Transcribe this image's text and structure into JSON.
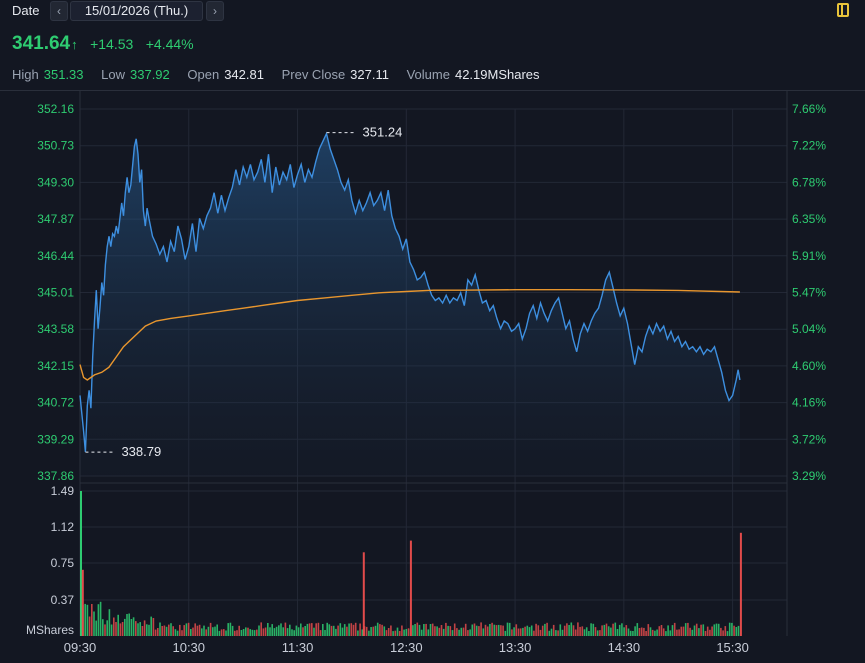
{
  "header": {
    "date_label": "Date",
    "prev_icon": "‹",
    "next_icon": "›",
    "date_value": "15/01/2026 (Thu.)"
  },
  "quote": {
    "last": "341.64",
    "arrow": "↑",
    "change": "+14.53",
    "change_pct": "+4.44%",
    "up_color": "#2ecc71"
  },
  "stats": [
    {
      "label": "High",
      "value": "351.33",
      "tone": "g"
    },
    {
      "label": "Low",
      "value": "337.92",
      "tone": "g"
    },
    {
      "label": "Open",
      "value": "342.81",
      "tone": "w"
    },
    {
      "label": "Prev Close",
      "value": "327.11",
      "tone": "w"
    },
    {
      "label": "Volume",
      "value": "42.19MShares",
      "tone": "w"
    }
  ],
  "chart_data": {
    "type": "line",
    "price_axis": {
      "ticks": [
        "352.16",
        "350.73",
        "349.30",
        "347.87",
        "346.44",
        "345.01",
        "343.58",
        "342.15",
        "340.72",
        "339.29",
        "337.86"
      ],
      "ylim": [
        337.86,
        352.16
      ]
    },
    "pct_axis": {
      "ticks": [
        "7.66%",
        "7.22%",
        "6.78%",
        "6.35%",
        "5.91%",
        "5.47%",
        "5.04%",
        "4.60%",
        "4.16%",
        "3.72%",
        "3.29%"
      ]
    },
    "time_ticks": [
      "09:30",
      "10:30",
      "11:30",
      "12:30",
      "13:30",
      "14:30",
      "15:30"
    ],
    "x_range": [
      "09:30",
      "16:00"
    ],
    "price_series": {
      "color": "#3d8fe0",
      "points": [
        [
          "09:30",
          341.0
        ],
        [
          "09:32",
          339.6
        ],
        [
          "09:33",
          338.8
        ],
        [
          "09:34",
          340.6
        ],
        [
          "09:35",
          341.2
        ],
        [
          "09:36",
          340.5
        ],
        [
          "09:37",
          342.5
        ],
        [
          "09:38",
          343.9
        ],
        [
          "09:39",
          345.1
        ],
        [
          "09:40",
          343.6
        ],
        [
          "09:41",
          344.4
        ],
        [
          "09:42",
          345.4
        ],
        [
          "09:43",
          344.9
        ],
        [
          "09:44",
          346.1
        ],
        [
          "09:45",
          346.8
        ],
        [
          "09:46",
          347.2
        ],
        [
          "09:47",
          346.8
        ],
        [
          "09:48",
          347.3
        ],
        [
          "09:49",
          347.2
        ],
        [
          "09:50",
          347.6
        ],
        [
          "09:51",
          347.3
        ],
        [
          "09:52",
          347.9
        ],
        [
          "09:53",
          348.5
        ],
        [
          "09:54",
          348.0
        ],
        [
          "09:55",
          348.9
        ],
        [
          "09:56",
          349.5
        ],
        [
          "09:57",
          348.9
        ],
        [
          "09:58",
          349.2
        ],
        [
          "10:00",
          350.7
        ],
        [
          "10:01",
          351.0
        ],
        [
          "10:02",
          350.4
        ],
        [
          "10:03",
          349.3
        ],
        [
          "10:04",
          349.8
        ],
        [
          "10:05",
          348.2
        ],
        [
          "10:06",
          347.6
        ],
        [
          "10:07",
          348.3
        ],
        [
          "10:08",
          347.9
        ],
        [
          "10:10",
          347.2
        ],
        [
          "10:12",
          346.9
        ],
        [
          "10:14",
          346.5
        ],
        [
          "10:16",
          346.8
        ],
        [
          "10:18",
          346.2
        ],
        [
          "10:20",
          347.0
        ],
        [
          "10:22",
          346.6
        ],
        [
          "10:24",
          347.6
        ],
        [
          "10:26",
          347.1
        ],
        [
          "10:28",
          346.3
        ],
        [
          "10:30",
          346.8
        ],
        [
          "10:32",
          347.7
        ],
        [
          "10:34",
          346.6
        ],
        [
          "10:36",
          347.9
        ],
        [
          "10:38",
          347.5
        ],
        [
          "10:40",
          348.0
        ],
        [
          "10:42",
          348.3
        ],
        [
          "10:44",
          348.9
        ],
        [
          "10:46",
          348.1
        ],
        [
          "10:48",
          348.8
        ],
        [
          "10:50",
          348.2
        ],
        [
          "10:52",
          348.7
        ],
        [
          "10:54",
          349.1
        ],
        [
          "10:56",
          349.8
        ],
        [
          "10:58",
          349.2
        ],
        [
          "11:00",
          349.9
        ],
        [
          "11:02",
          349.5
        ],
        [
          "11:04",
          350.0
        ],
        [
          "11:06",
          349.4
        ],
        [
          "11:08",
          349.7
        ],
        [
          "11:10",
          350.2
        ],
        [
          "11:12",
          349.3
        ],
        [
          "11:14",
          350.4
        ],
        [
          "11:16",
          348.9
        ],
        [
          "11:18",
          349.9
        ],
        [
          "11:20",
          349.2
        ],
        [
          "11:22",
          349.7
        ],
        [
          "11:24",
          349.4
        ],
        [
          "11:26",
          350.0
        ],
        [
          "11:28",
          349.1
        ],
        [
          "11:30",
          349.6
        ],
        [
          "11:32",
          350.0
        ],
        [
          "11:34",
          349.3
        ],
        [
          "11:36",
          349.8
        ],
        [
          "11:38",
          349.5
        ],
        [
          "11:40",
          350.1
        ],
        [
          "11:42",
          350.6
        ],
        [
          "11:44",
          350.9
        ],
        [
          "11:46",
          351.2
        ],
        [
          "11:48",
          350.6
        ],
        [
          "11:50",
          350.2
        ],
        [
          "11:52",
          349.8
        ],
        [
          "11:54",
          349.3
        ],
        [
          "11:56",
          349.0
        ],
        [
          "11:58",
          349.4
        ],
        [
          "12:00",
          348.6
        ],
        [
          "12:02",
          348.1
        ],
        [
          "12:04",
          348.6
        ],
        [
          "12:06",
          348.2
        ],
        [
          "12:08",
          348.5
        ],
        [
          "12:10",
          348.9
        ],
        [
          "12:12",
          348.4
        ],
        [
          "12:14",
          348.6
        ],
        [
          "12:16",
          348.9
        ],
        [
          "12:18",
          348.2
        ],
        [
          "12:20",
          349.0
        ],
        [
          "12:22",
          348.0
        ],
        [
          "12:24",
          347.5
        ],
        [
          "12:26",
          347.2
        ],
        [
          "12:28",
          346.7
        ],
        [
          "12:30",
          347.1
        ],
        [
          "12:32",
          346.2
        ],
        [
          "12:34",
          345.9
        ],
        [
          "12:36",
          345.5
        ],
        [
          "12:38",
          345.6
        ],
        [
          "12:40",
          345.8
        ],
        [
          "12:42",
          345.3
        ],
        [
          "12:44",
          344.9
        ],
        [
          "12:46",
          344.7
        ],
        [
          "12:48",
          344.8
        ],
        [
          "12:50",
          344.6
        ],
        [
          "12:52",
          344.9
        ],
        [
          "12:54",
          344.6
        ],
        [
          "12:56",
          344.8
        ],
        [
          "12:58",
          344.7
        ],
        [
          "13:00",
          345.0
        ],
        [
          "13:02",
          344.5
        ],
        [
          "13:04",
          345.5
        ],
        [
          "13:06",
          345.3
        ],
        [
          "13:08",
          345.7
        ],
        [
          "13:10",
          345.1
        ],
        [
          "13:12",
          344.6
        ],
        [
          "13:14",
          344.7
        ],
        [
          "13:16",
          344.3
        ],
        [
          "13:18",
          344.5
        ],
        [
          "13:20",
          344.0
        ],
        [
          "13:22",
          343.6
        ],
        [
          "13:24",
          343.9
        ],
        [
          "13:26",
          343.8
        ],
        [
          "13:28",
          343.5
        ],
        [
          "13:30",
          343.6
        ],
        [
          "13:32",
          343.8
        ],
        [
          "13:34",
          343.2
        ],
        [
          "13:36",
          343.6
        ],
        [
          "13:38",
          344.2
        ],
        [
          "13:40",
          344.5
        ],
        [
          "13:42",
          344.0
        ],
        [
          "13:44",
          344.6
        ],
        [
          "13:46",
          344.2
        ],
        [
          "13:48",
          343.9
        ],
        [
          "13:50",
          344.3
        ],
        [
          "13:52",
          344.6
        ],
        [
          "13:54",
          344.8
        ],
        [
          "13:56",
          344.2
        ],
        [
          "13:58",
          343.6
        ],
        [
          "14:00",
          343.9
        ],
        [
          "14:02",
          343.2
        ],
        [
          "14:04",
          342.7
        ],
        [
          "14:06",
          343.4
        ],
        [
          "14:08",
          343.8
        ],
        [
          "14:10",
          343.5
        ],
        [
          "14:12",
          343.9
        ],
        [
          "14:14",
          344.2
        ],
        [
          "14:16",
          344.4
        ],
        [
          "14:18",
          344.9
        ],
        [
          "14:20",
          345.5
        ],
        [
          "14:22",
          345.8
        ],
        [
          "14:24",
          345.2
        ],
        [
          "14:26",
          344.6
        ],
        [
          "14:28",
          344.1
        ],
        [
          "14:30",
          344.4
        ],
        [
          "14:32",
          343.8
        ],
        [
          "14:34",
          343.0
        ],
        [
          "14:36",
          342.2
        ],
        [
          "14:38",
          342.9
        ],
        [
          "14:40",
          342.7
        ],
        [
          "14:42",
          343.3
        ],
        [
          "14:44",
          343.7
        ],
        [
          "14:46",
          343.4
        ],
        [
          "14:48",
          343.8
        ],
        [
          "14:50",
          343.5
        ],
        [
          "14:52",
          343.7
        ],
        [
          "14:54",
          343.2
        ],
        [
          "14:56",
          343.5
        ],
        [
          "14:58",
          343.1
        ],
        [
          "15:00",
          343.3
        ],
        [
          "15:02",
          342.9
        ],
        [
          "15:04",
          343.1
        ],
        [
          "15:06",
          342.8
        ],
        [
          "15:08",
          342.9
        ],
        [
          "15:10",
          342.7
        ],
        [
          "15:12",
          342.9
        ],
        [
          "15:14",
          342.6
        ],
        [
          "15:16",
          342.8
        ],
        [
          "15:18",
          342.7
        ],
        [
          "15:20",
          342.9
        ],
        [
          "15:22",
          342.4
        ],
        [
          "15:24",
          341.9
        ],
        [
          "15:26",
          341.2
        ],
        [
          "15:28",
          340.8
        ],
        [
          "15:30",
          341.0
        ],
        [
          "15:32",
          341.6
        ],
        [
          "15:33",
          342.0
        ],
        [
          "15:34",
          341.6
        ]
      ]
    },
    "average_series": {
      "color": "#e8962e",
      "points": [
        [
          "09:30",
          342.2
        ],
        [
          "09:32",
          341.7
        ],
        [
          "09:34",
          341.6
        ],
        [
          "09:38",
          341.8
        ],
        [
          "09:42",
          341.9
        ],
        [
          "09:46",
          342.1
        ],
        [
          "09:50",
          342.5
        ],
        [
          "09:54",
          342.9
        ],
        [
          "10:00",
          343.3
        ],
        [
          "10:06",
          343.7
        ],
        [
          "10:12",
          343.9
        ],
        [
          "10:20",
          344.0
        ],
        [
          "10:30",
          344.1
        ],
        [
          "10:40",
          344.2
        ],
        [
          "10:50",
          344.3
        ],
        [
          "11:00",
          344.4
        ],
        [
          "11:10",
          344.5
        ],
        [
          "11:20",
          344.6
        ],
        [
          "11:30",
          344.7
        ],
        [
          "11:45",
          344.8
        ],
        [
          "12:00",
          344.9
        ],
        [
          "12:15",
          345.0
        ],
        [
          "12:30",
          345.05
        ],
        [
          "12:45",
          345.1
        ],
        [
          "13:00",
          345.1
        ],
        [
          "13:30",
          345.12
        ],
        [
          "14:00",
          345.12
        ],
        [
          "14:30",
          345.11
        ],
        [
          "15:00",
          345.09
        ],
        [
          "15:34",
          345.03
        ]
      ]
    },
    "annotations": [
      {
        "time": "11:46",
        "price": 351.24,
        "label": "351.24"
      },
      {
        "time": "09:33",
        "price": 338.79,
        "label": "338.79"
      }
    ],
    "volume": {
      "unit_label": "MShares",
      "ticks": [
        "1.49",
        "1.12",
        "0.75",
        "0.37"
      ],
      "ymax": 1.49,
      "up_color": "#2ecc71",
      "down_color": "#e24b4b",
      "spikes": [
        {
          "time": "09:30",
          "value": 1.49,
          "color": "#2ecc71"
        },
        {
          "time": "09:31",
          "value": 0.68,
          "color": "#e24b4b"
        },
        {
          "time": "12:06",
          "value": 0.86,
          "color": "#e24b4b"
        },
        {
          "time": "12:32",
          "value": 0.98,
          "color": "#e24b4b"
        },
        {
          "time": "15:34",
          "value": 1.06,
          "color": "#e24b4b"
        }
      ]
    }
  }
}
